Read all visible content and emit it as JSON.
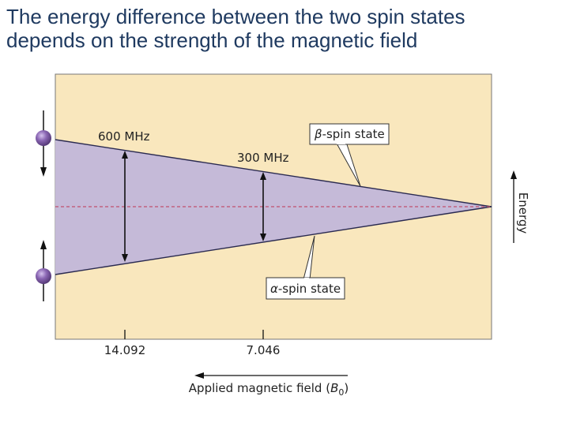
{
  "title_lines": [
    "The energy difference between the two spin states",
    "depends on the strength of the magnetic field"
  ],
  "chart_data": {
    "type": "diagram",
    "xlabel_prefix": "Applied magnetic field (",
    "xlabel_symbol": "B",
    "xlabel_subscript": "0",
    "xlabel_suffix": ")",
    "ylabel": "Energy",
    "x_axis_direction": "increasing to the left",
    "ticks": [
      {
        "label": "14.092",
        "field": 14.092
      },
      {
        "label": "7.046",
        "field": 7.046
      }
    ],
    "gaps": [
      {
        "label": "600 MHz",
        "field": 14.092,
        "frequency_mhz": 600
      },
      {
        "label": "300 MHz",
        "field": 7.046,
        "frequency_mhz": 300
      }
    ],
    "states": {
      "beta": {
        "symbol": "β",
        "text": "-spin state"
      },
      "alpha": {
        "symbol": "α",
        "text": "-spin state"
      }
    },
    "colors": {
      "panel_background": "#f9e7bd",
      "energy_band": "#c5bad8",
      "baseline": "#c0506e",
      "spin_sphere": "#8a66b3",
      "title": "#1f3a60"
    }
  }
}
